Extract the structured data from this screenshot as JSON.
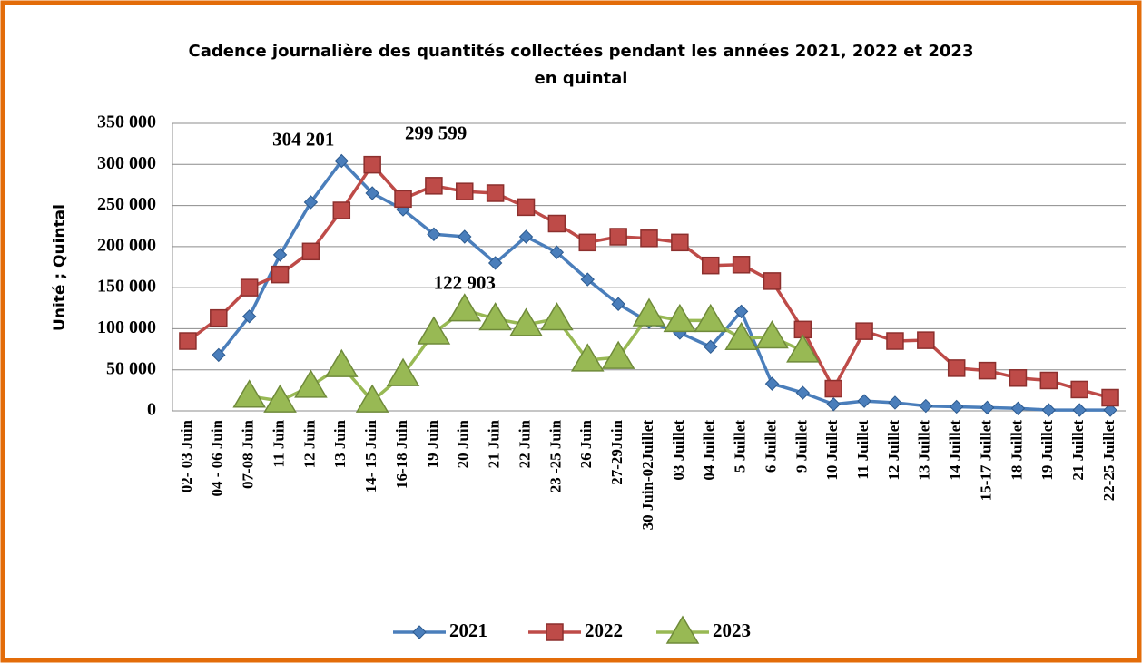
{
  "chart_data": {
    "type": "line",
    "title": [
      "Cadence journalière des quantités collectées pendant les années 2021, 2022 et 2023",
      "en quintal"
    ],
    "y_label": "Unité ; Quintal",
    "categories": [
      "02- 03 Juin",
      "04 - 06 Juin",
      "07-08 Juin",
      "11  Juin",
      "12  Juin",
      "13  Juin",
      "14- 15 Juin",
      "16-18  Juin",
      "19  Juin",
      "20  Juin",
      "21  Juin",
      "22  Juin",
      "23 -25 Juin",
      "26  Juin",
      "27-29Juin",
      "30 Juin-02Juillet",
      "03 Juillet",
      "04 Juillet",
      "5 Juillet",
      "6 Juillet",
      "9  Juillet",
      "10  Juillet",
      "11  Juillet",
      "12  Juillet",
      "13 Juillet",
      "14  Juillet",
      "15-17 Juillet",
      "18 Juillet",
      "19  Juillet",
      "21 Juillet",
      "22-25  Juillet"
    ],
    "series": [
      {
        "name": "2021",
        "color": "#4a7ebb",
        "marker": "diamond",
        "values": [
          null,
          68000,
          115000,
          190000,
          254000,
          304201,
          265000,
          245000,
          215000,
          212000,
          180000,
          212000,
          193000,
          160000,
          130000,
          108000,
          95000,
          78000,
          121000,
          33000,
          22000,
          8000,
          12000,
          10000,
          6000,
          5000,
          4000,
          3000,
          1000,
          1000,
          1000
        ],
        "value_labels": [
          null,
          null,
          null,
          null,
          null,
          "304 201",
          null,
          null,
          null,
          null,
          null,
          null,
          null,
          null,
          null,
          null,
          null,
          null,
          null,
          null,
          null,
          null,
          null,
          null,
          null,
          null,
          null,
          null,
          null,
          null,
          null
        ]
      },
      {
        "name": "2022",
        "color": "#be4b48",
        "marker": "square",
        "values": [
          85000,
          113000,
          150000,
          166000,
          194000,
          244000,
          299599,
          258000,
          274000,
          267000,
          265000,
          248000,
          228000,
          205000,
          212000,
          210000,
          205000,
          177000,
          178000,
          158000,
          99000,
          27000,
          97000,
          85000,
          86000,
          52000,
          49000,
          40000,
          37000,
          26000,
          16000
        ],
        "value_labels": [
          null,
          null,
          null,
          null,
          null,
          null,
          "299 599",
          null,
          null,
          null,
          null,
          null,
          null,
          null,
          null,
          null,
          null,
          null,
          null,
          null,
          null,
          null,
          null,
          null,
          null,
          null,
          null,
          null,
          null,
          null,
          null
        ]
      },
      {
        "name": "2023",
        "color": "#98b954",
        "marker": "triangle",
        "values": [
          null,
          null,
          18000,
          12000,
          30000,
          55000,
          12000,
          44000,
          95000,
          122903,
          112000,
          105000,
          112000,
          62000,
          65000,
          117000,
          110000,
          110000,
          88000,
          90000,
          73000,
          null,
          null,
          null,
          null,
          null,
          null,
          null,
          null,
          null,
          null
        ],
        "value_labels": [
          null,
          null,
          null,
          null,
          null,
          null,
          null,
          null,
          null,
          "122 903",
          null,
          null,
          null,
          null,
          null,
          null,
          null,
          null,
          null,
          null,
          null,
          null,
          null,
          null,
          null,
          null,
          null,
          null,
          null,
          null,
          null
        ]
      }
    ],
    "ylim": [
      0,
      350000
    ],
    "yticks": [
      0,
      {
        "value": 50000,
        "label": "50 000"
      },
      {
        "value": 100000,
        "label": "100 000"
      },
      {
        "value": 150000,
        "label": "150 000"
      },
      {
        "value": 200000,
        "label": "200 000"
      },
      {
        "value": 250000,
        "label": "250 000"
      },
      {
        "value": 300000,
        "label": "300 000"
      },
      {
        "value": 350000,
        "label": "350 000"
      }
    ],
    "grid": true,
    "legend": "bottom"
  }
}
